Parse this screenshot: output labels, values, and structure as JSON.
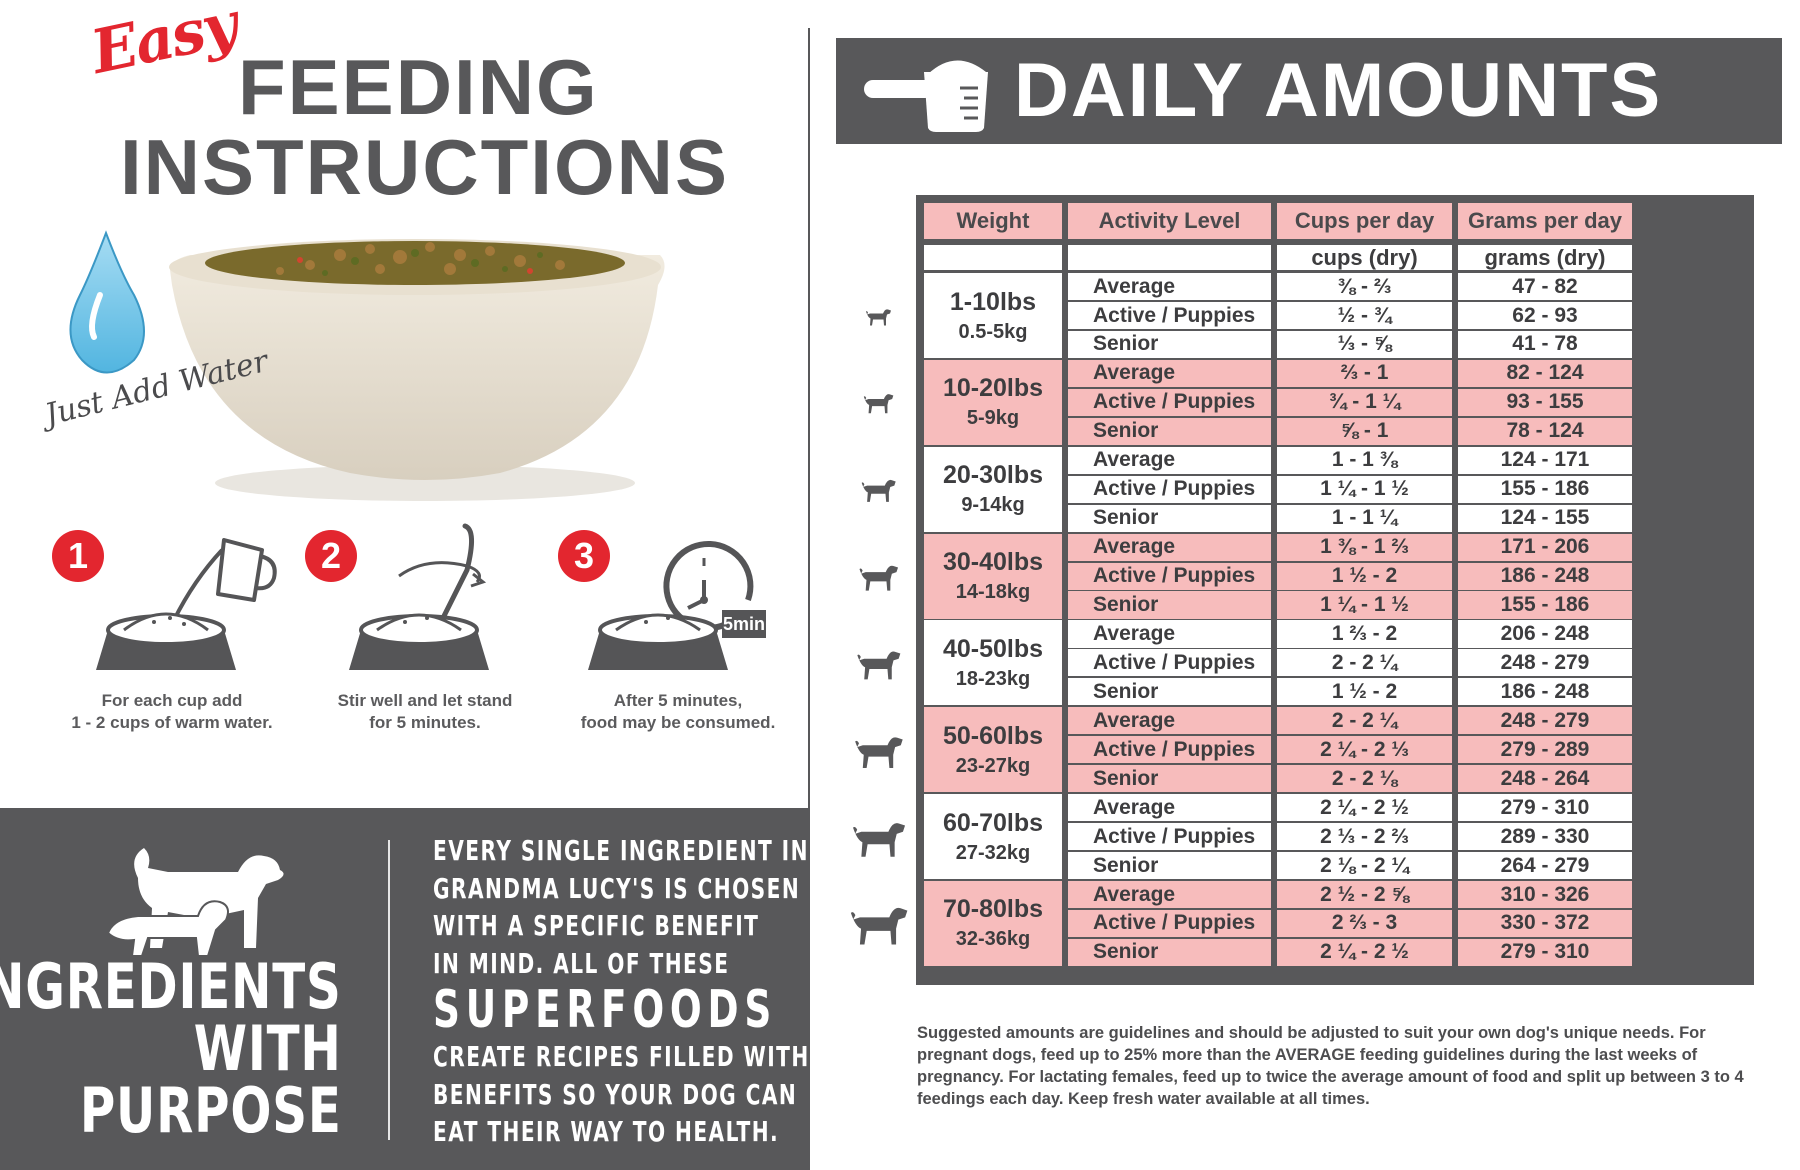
{
  "left": {
    "easy": "Easy",
    "title_line1": "FEEDING",
    "title_line2": "INSTRUCTIONS",
    "just_add_water": "Just Add Water",
    "steps": [
      {
        "num": "1",
        "text1": "For each cup add",
        "text2": "1 - 2 cups of warm water."
      },
      {
        "num": "2",
        "text1": "Stir well and let stand",
        "text2": "for 5 minutes."
      },
      {
        "num": "3",
        "text1": "After 5 minutes,",
        "text2": "food may be consumed."
      }
    ],
    "timer_label": "5min",
    "ingredients_title": [
      "INGREDIENTS",
      "WITH",
      "PURPOSE"
    ],
    "ingredients_text": [
      "EVERY SINGLE INGREDIENT IN",
      "GRANDMA LUCY'S IS CHOSEN",
      "WITH A SPECIFIC BENEFIT",
      "IN MIND. ALL OF THESE",
      "SUPERFOODS",
      "CREATE RECIPES FILLED WITH",
      "BENEFITS SO YOUR DOG CAN",
      "EAT THEIR WAY TO HEALTH."
    ]
  },
  "right": {
    "banner_title": "DAILY AMOUNTS",
    "headers": [
      "Weight",
      "Activity Level",
      "Cups per day",
      "Grams per day"
    ],
    "subheaders": [
      "",
      "",
      "cups (dry)",
      "grams (dry)"
    ],
    "groups": [
      {
        "lbs": "1-10lbs",
        "kg": "0.5-5kg",
        "rows": [
          {
            "activity": "Average",
            "cups": "⅜ - ⅔",
            "grams": "47 - 82"
          },
          {
            "activity": "Active / Puppies",
            "cups": "½ - ¾",
            "grams": "62 - 93"
          },
          {
            "activity": "Senior",
            "cups": "⅓ - ⅝",
            "grams": "41 - 78"
          }
        ]
      },
      {
        "lbs": "10-20lbs",
        "kg": "5-9kg",
        "rows": [
          {
            "activity": "Average",
            "cups": "⅔ - 1",
            "grams": "82 - 124"
          },
          {
            "activity": "Active / Puppies",
            "cups": "¾ - 1 ¼",
            "grams": "93 - 155"
          },
          {
            "activity": "Senior",
            "cups": "⅝ - 1",
            "grams": "78 - 124"
          }
        ]
      },
      {
        "lbs": "20-30lbs",
        "kg": "9-14kg",
        "rows": [
          {
            "activity": "Average",
            "cups": "1 - 1 ⅜",
            "grams": "124 - 171"
          },
          {
            "activity": "Active / Puppies",
            "cups": "1 ¼ - 1 ½",
            "grams": "155 - 186"
          },
          {
            "activity": "Senior",
            "cups": "1 - 1 ¼",
            "grams": "124 - 155"
          }
        ]
      },
      {
        "lbs": "30-40lbs",
        "kg": "14-18kg",
        "rows": [
          {
            "activity": "Average",
            "cups": "1 ⅜ - 1 ⅔",
            "grams": "171 - 206"
          },
          {
            "activity": "Active / Puppies",
            "cups": "1 ½ - 2",
            "grams": "186 - 248"
          },
          {
            "activity": "Senior",
            "cups": "1 ¼ - 1 ½",
            "grams": "155 - 186"
          }
        ]
      },
      {
        "lbs": "40-50lbs",
        "kg": "18-23kg",
        "rows": [
          {
            "activity": "Average",
            "cups": "1 ⅔ - 2",
            "grams": "206 - 248"
          },
          {
            "activity": "Active / Puppies",
            "cups": "2 - 2 ¼",
            "grams": "248 - 279"
          },
          {
            "activity": "Senior",
            "cups": "1 ½ - 2",
            "grams": "186 - 248"
          }
        ]
      },
      {
        "lbs": "50-60lbs",
        "kg": "23-27kg",
        "rows": [
          {
            "activity": "Average",
            "cups": "2 - 2 ¼",
            "grams": "248 - 279"
          },
          {
            "activity": "Active / Puppies",
            "cups": "2 ¼ - 2 ⅓",
            "grams": "279 - 289"
          },
          {
            "activity": "Senior",
            "cups": "2 - 2 ⅛",
            "grams": "248 - 264"
          }
        ]
      },
      {
        "lbs": "60-70lbs",
        "kg": "27-32kg",
        "rows": [
          {
            "activity": "Average",
            "cups": "2 ¼ - 2 ½",
            "grams": "279 - 310"
          },
          {
            "activity": "Active / Puppies",
            "cups": "2 ⅓ - 2 ⅔",
            "grams": "289 - 330"
          },
          {
            "activity": "Senior",
            "cups": "2 ⅛ - 2 ¼",
            "grams": "264 - 279"
          }
        ]
      },
      {
        "lbs": "70-80lbs",
        "kg": "32-36kg",
        "rows": [
          {
            "activity": "Average",
            "cups": "2 ½ - 2 ⅝",
            "grams": "310 - 326"
          },
          {
            "activity": "Active / Puppies",
            "cups": "2 ⅔ - 3",
            "grams": "330 - 372"
          },
          {
            "activity": "Senior",
            "cups": "2 ¼ - 2 ½",
            "grams": "279 - 310"
          }
        ]
      }
    ],
    "footnote": "Suggested amounts are guidelines and should be adjusted to suit your own dog's unique needs. For pregnant dogs, feed up to 25% more than the AVERAGE feeding guidelines during the last weeks of pregnancy. For lactating females, feed up to twice the average amount of food and split up between 3 to 4 feedings each day. Keep fresh water available at all times."
  },
  "colors": {
    "brand_red": "#e3262f",
    "charcoal": "#58585a",
    "pink_row": "#f7bcbc",
    "white_row": "#ffffff"
  },
  "icons": [
    "water-drop-icon",
    "food-bowl-icon",
    "measuring-cup-icon",
    "fork-icon",
    "timer-icon",
    "dog-silhouette-icon",
    "scoop-icon"
  ]
}
